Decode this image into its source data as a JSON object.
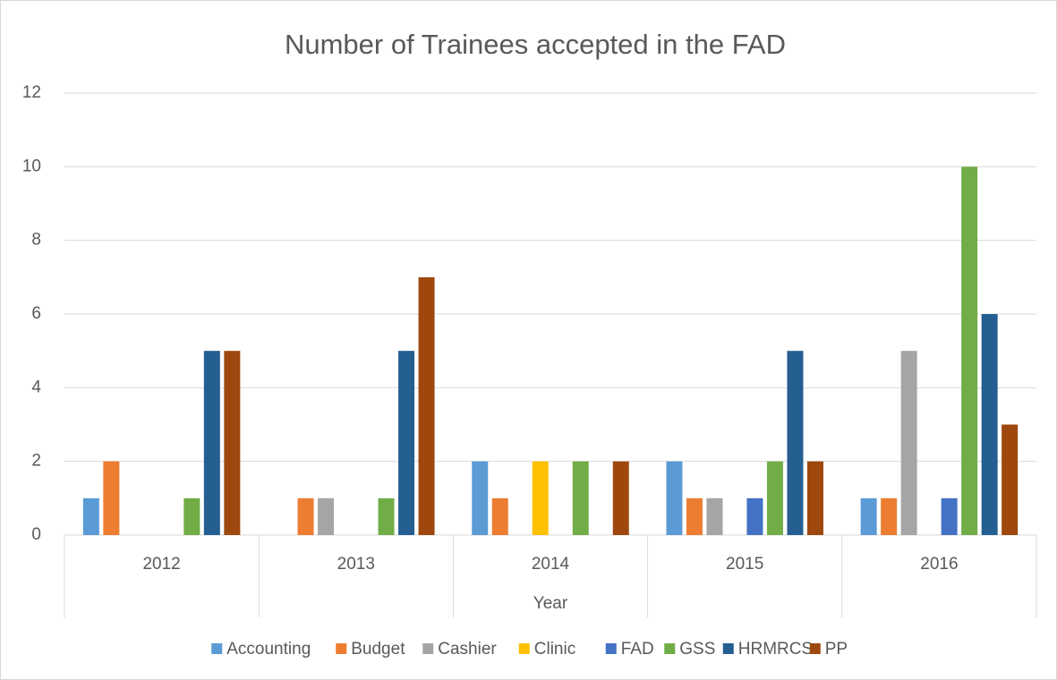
{
  "chart_data": {
    "type": "bar",
    "title": "Number of Trainees accepted in the FAD",
    "x_label": "Year",
    "categories": [
      "2012",
      "2013",
      "2014",
      "2015",
      "2016"
    ],
    "series": [
      {
        "name": "Accounting",
        "color": "#5b9bd5",
        "values": [
          1,
          0,
          2,
          2,
          1
        ]
      },
      {
        "name": "Budget",
        "color": "#ed7d31",
        "values": [
          2,
          1,
          1,
          1,
          1
        ]
      },
      {
        "name": "Cashier",
        "color": "#a5a5a5",
        "values": [
          0,
          1,
          0,
          1,
          5
        ]
      },
      {
        "name": "Clinic",
        "color": "#ffc000",
        "values": [
          0,
          0,
          2,
          0,
          0
        ]
      },
      {
        "name": "FAD",
        "color": "#4472c4",
        "values": [
          0,
          0,
          0,
          1,
          1
        ]
      },
      {
        "name": "GSS",
        "color": "#70ad47",
        "values": [
          1,
          1,
          2,
          2,
          10
        ]
      },
      {
        "name": "HRMRCS",
        "color": "#255e91",
        "values": [
          5,
          5,
          0,
          5,
          6
        ]
      },
      {
        "name": "PP",
        "color": "#9e480e",
        "values": [
          5,
          7,
          2,
          2,
          3
        ]
      }
    ],
    "ylim": [
      0,
      12
    ],
    "yticks": [
      0,
      2,
      4,
      6,
      8,
      10,
      12
    ],
    "grid": true,
    "legend": "bottom"
  }
}
